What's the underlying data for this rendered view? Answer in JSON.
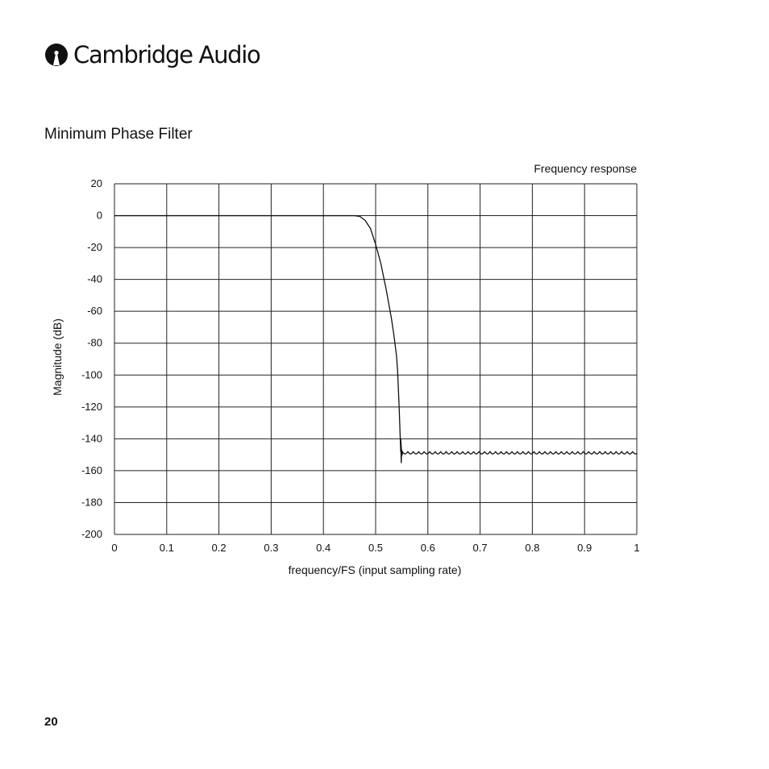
{
  "header": {
    "brand_name": "Cambridge Audio",
    "logo_icon": "cambridge-audio-logo-icon"
  },
  "section": {
    "title": "Minimum Phase Filter"
  },
  "page": {
    "number": "20"
  },
  "colors": {
    "grid": "#222222",
    "curve": "#111111",
    "text": "#111111"
  },
  "chart_data": {
    "type": "line",
    "title": "Frequency response",
    "xlabel": "frequency/FS (input sampling rate)",
    "ylabel": "Magnitude (dB)",
    "xlim": [
      0,
      1
    ],
    "ylim": [
      -200,
      20
    ],
    "x_ticks": [
      0,
      0.1,
      0.2,
      0.3,
      0.4,
      0.5,
      0.6,
      0.7,
      0.8,
      0.9,
      1
    ],
    "x_tick_labels": [
      "0",
      "0.1",
      "0.2",
      "0.3",
      "0.4",
      "0.5",
      "0.6",
      "0.7",
      "0.8",
      "0.9",
      "1"
    ],
    "y_ticks": [
      20,
      0,
      -20,
      -40,
      -60,
      -80,
      -100,
      -120,
      -140,
      -160,
      -180,
      -200
    ],
    "y_tick_labels": [
      "20",
      "0",
      "-20",
      "-40",
      "-60",
      "-80",
      "-100",
      "-120",
      "-140",
      "-160",
      "-180",
      "-200"
    ],
    "grid": true,
    "legend": "none",
    "series": [
      {
        "passband": {
          "x": [
            0,
            0.46
          ],
          "y": [
            0,
            0
          ]
        },
        "transition": {
          "x": [
            0.46,
            0.47,
            0.48,
            0.49,
            0.5,
            0.51,
            0.52,
            0.53,
            0.535,
            0.54,
            0.542,
            0.545,
            0.548,
            0.55
          ],
          "y": [
            0,
            -0.5,
            -3,
            -8,
            -18,
            -30,
            -46,
            -64,
            -75,
            -88,
            -97,
            -120,
            -148,
            -150
          ]
        },
        "notch": {
          "x": [
            0.548,
            0.549,
            0.55,
            0.551
          ],
          "y": [
            -140,
            -155,
            -147,
            -150
          ]
        },
        "stopband": {
          "x_start": 0.551,
          "x_end": 1.0,
          "level": -148,
          "ripple_db": 1.5,
          "ripple_period": 0.0105
        }
      }
    ]
  }
}
